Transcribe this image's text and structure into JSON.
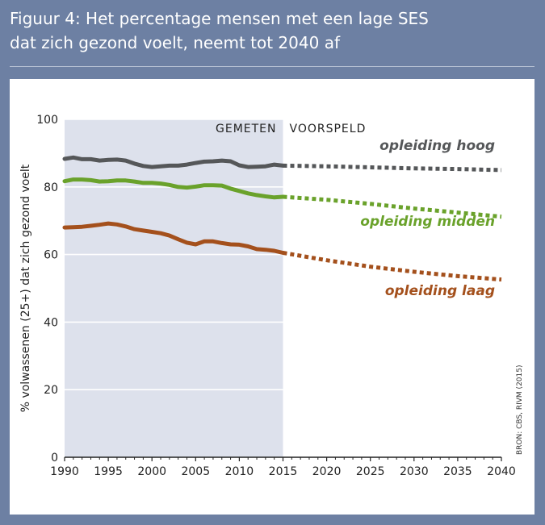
{
  "figure": {
    "title_line1": "Figuur 4: Het percentage mensen met een lage SES",
    "title_line2": "dat zich gezond voelt, neemt tot 2040 af",
    "source": "BRON: CBS, RIVM (2015)"
  },
  "chart_data": {
    "type": "line",
    "title": "Figuur 4: Het percentage mensen met een lage SES dat zich gezond voelt, neemt tot 2040 af",
    "xlabel": "",
    "ylabel": "% volwassenen (25+) dat zich gezond voelt",
    "xlim": [
      1990,
      2040
    ],
    "ylim": [
      0,
      100
    ],
    "x_ticks": [
      1990,
      1995,
      2000,
      2005,
      2010,
      2015,
      2020,
      2025,
      2030,
      2035,
      2040
    ],
    "y_ticks": [
      0,
      20,
      40,
      60,
      80,
      100
    ],
    "grid": "horizontal",
    "phase_labels": {
      "measured": "GEMETEN",
      "forecast": "VOORSPELD"
    },
    "measured_until": 2015,
    "series": [
      {
        "name": "opleiding hoog",
        "color": "#555759",
        "measured": {
          "x": [
            1990,
            1991,
            1992,
            1993,
            1994,
            1995,
            1996,
            1997,
            1998,
            1999,
            2000,
            2001,
            2002,
            2003,
            2004,
            2005,
            2006,
            2007,
            2008,
            2009,
            2010,
            2011,
            2012,
            2013,
            2014,
            2015
          ],
          "y": [
            88.3,
            88.7,
            88.2,
            88.2,
            87.8,
            88.0,
            88.1,
            87.8,
            86.9,
            86.2,
            85.9,
            86.1,
            86.3,
            86.3,
            86.6,
            87.1,
            87.5,
            87.6,
            87.8,
            87.6,
            86.4,
            85.9,
            86.0,
            86.1,
            86.6,
            86.3
          ]
        },
        "forecast": {
          "x": [
            2015,
            2020,
            2025,
            2030,
            2035,
            2040
          ],
          "y": [
            86.3,
            86.1,
            85.8,
            85.5,
            85.3,
            85.0
          ]
        }
      },
      {
        "name": "opleiding midden",
        "color": "#6aa22b",
        "measured": {
          "x": [
            1990,
            1991,
            1992,
            1993,
            1994,
            1995,
            1996,
            1997,
            1998,
            1999,
            2000,
            2001,
            2002,
            2003,
            2004,
            2005,
            2006,
            2007,
            2008,
            2009,
            2010,
            2011,
            2012,
            2013,
            2014,
            2015
          ],
          "y": [
            81.7,
            82.2,
            82.2,
            82.0,
            81.6,
            81.7,
            81.9,
            81.9,
            81.6,
            81.2,
            81.2,
            81.0,
            80.6,
            80.0,
            79.8,
            80.1,
            80.5,
            80.5,
            80.4,
            79.5,
            78.8,
            78.1,
            77.6,
            77.2,
            76.9,
            77.1
          ]
        },
        "forecast": {
          "x": [
            2015,
            2020,
            2025,
            2030,
            2035,
            2040
          ],
          "y": [
            77.1,
            76.2,
            75.0,
            73.6,
            72.4,
            71.2
          ]
        }
      },
      {
        "name": "opleiding laag",
        "color": "#a4501c",
        "measured": {
          "x": [
            1990,
            1991,
            1992,
            1993,
            1994,
            1995,
            1996,
            1997,
            1998,
            1999,
            2000,
            2001,
            2002,
            2003,
            2004,
            2005,
            2006,
            2007,
            2008,
            2009,
            2010,
            2011,
            2012,
            2013,
            2014,
            2015
          ],
          "y": [
            68.0,
            68.1,
            68.2,
            68.5,
            68.8,
            69.2,
            68.9,
            68.3,
            67.5,
            67.1,
            66.7,
            66.3,
            65.6,
            64.5,
            63.5,
            63.0,
            63.9,
            63.9,
            63.4,
            63.0,
            62.9,
            62.4,
            61.6,
            61.4,
            61.1,
            60.5
          ]
        },
        "forecast": {
          "x": [
            2015,
            2020,
            2025,
            2030,
            2035,
            2040
          ],
          "y": [
            60.5,
            58.3,
            56.4,
            54.9,
            53.6,
            52.6
          ]
        }
      }
    ]
  }
}
